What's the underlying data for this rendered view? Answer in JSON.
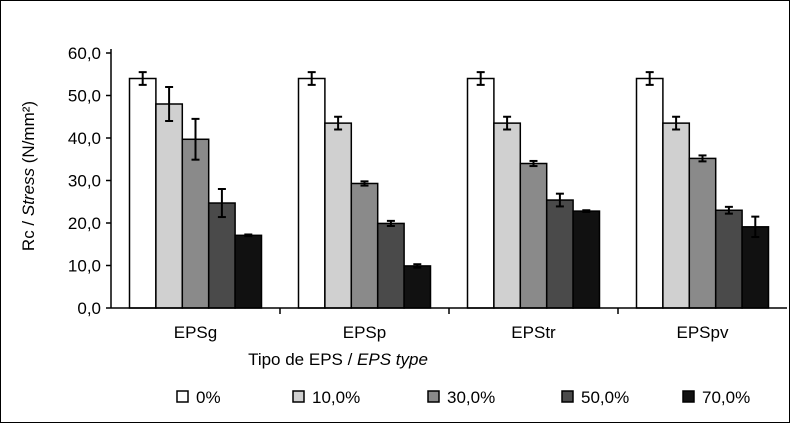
{
  "chart_data": {
    "type": "bar",
    "categories": [
      "EPSg",
      "EPSp",
      "EPStr",
      "EPSpv"
    ],
    "series": [
      {
        "name": "0%",
        "values": [
          54.0,
          54.0,
          54.0,
          54.0
        ],
        "errors": [
          1.5,
          1.5,
          1.5,
          1.5
        ],
        "color": "#ffffff"
      },
      {
        "name": "10,0%",
        "values": [
          48.0,
          43.5,
          43.5,
          43.5
        ],
        "errors": [
          4.0,
          1.5,
          1.5,
          1.5
        ],
        "color": "#d0d0d0"
      },
      {
        "name": "30,0%",
        "values": [
          39.7,
          29.3,
          34.0,
          35.2
        ],
        "errors": [
          4.8,
          0.5,
          0.6,
          0.7
        ],
        "color": "#8a8a8a"
      },
      {
        "name": "50,0%",
        "values": [
          24.7,
          19.9,
          25.4,
          23.0
        ],
        "errors": [
          3.3,
          0.6,
          1.5,
          0.8
        ],
        "color": "#4a4a4a"
      },
      {
        "name": "70,0%",
        "values": [
          17.1,
          9.9,
          22.8,
          19.1
        ],
        "errors": [
          0.2,
          0.4,
          0.2,
          2.4
        ],
        "color": "#111111"
      }
    ],
    "yticks": [
      "0,0",
      "10,0",
      "20,0",
      "30,0",
      "40,0",
      "50,0",
      "60,0"
    ],
    "ylim": [
      0,
      60
    ],
    "ylabel_plain": "Rc / ",
    "ylabel_italic": "Stress",
    "ylabel_unit": " (N/mm²)",
    "xlabel_plain": "Tipo de EPS / ",
    "xlabel_italic": "EPS type",
    "legend_position": "bottom",
    "grid": false
  }
}
